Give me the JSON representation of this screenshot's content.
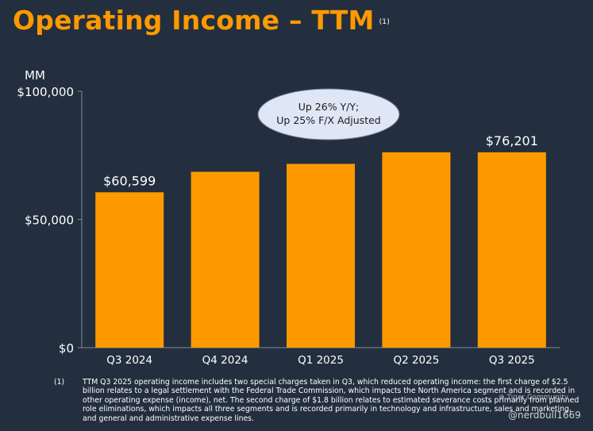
{
  "title": "Operating Income – TTM",
  "title_footnote_marker": "(1)",
  "colors": {
    "background": "#232f3e",
    "accent": "#ff9900",
    "bubble": "#dfe6f5"
  },
  "chart_data": {
    "type": "bar",
    "unit_label": "MM",
    "categories": [
      "Q3 2024",
      "Q4 2024",
      "Q1 2025",
      "Q2 2025",
      "Q3 2025"
    ],
    "values": [
      60599,
      68593,
      71687,
      76198,
      76201
    ],
    "data_labels": [
      "$60,599",
      "",
      "",
      "",
      "$76,201"
    ],
    "ylim": [
      0,
      100000
    ],
    "yticks": [
      0,
      50000,
      100000
    ],
    "ytick_labels": [
      "$0",
      "$50,000",
      "$100,000"
    ],
    "annotation": {
      "line1": "Up 26% Y/Y;",
      "line2": "Up 25% F/X Adjusted"
    }
  },
  "footnote": {
    "marker": "(1)",
    "text": "TTM Q3 2025 operating income includes two special charges taken in Q3, which reduced operating income: the first charge of $2.5 billion relates to a legal settlement with the Federal Trade Commission, which impacts the North America segment and is recorded in other operating expense (income), net. The second charge of $1.8 billion relates to estimated severance costs primarily from planned role eliminations, which impacts all three segments and is recorded primarily in technology and infrastructure, sales and marketing, and general and administrative expense lines."
  },
  "watermark": {
    "logo_text": "Tiger Community",
    "handle": "@nerdbull1669"
  }
}
